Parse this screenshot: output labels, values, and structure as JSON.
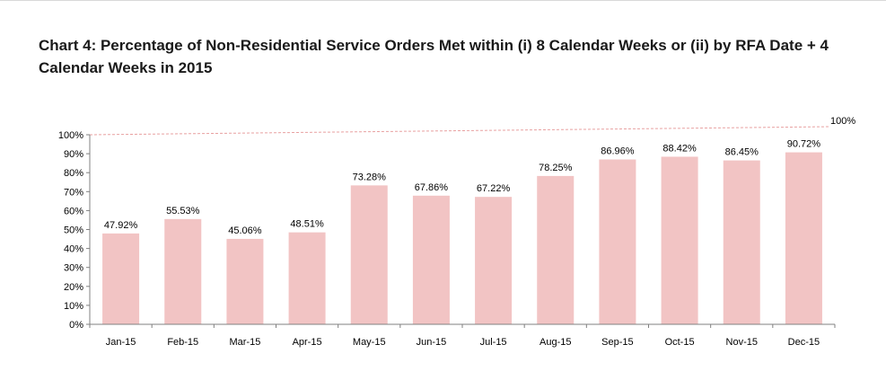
{
  "chart_data": {
    "type": "bar",
    "title": "Chart 4: Percentage of Non-Residential Service Orders Met within (i) 8 Calendar Weeks or (ii) by RFA Date + 4 Calendar Weeks in 2015",
    "categories": [
      "Jan-15",
      "Feb-15",
      "Mar-15",
      "Apr-15",
      "May-15",
      "Jun-15",
      "Jul-15",
      "Aug-15",
      "Sep-15",
      "Oct-15",
      "Nov-15",
      "Dec-15"
    ],
    "values": [
      47.92,
      55.53,
      45.06,
      48.51,
      73.28,
      67.86,
      67.22,
      78.25,
      86.96,
      88.42,
      86.45,
      90.72
    ],
    "data_labels": [
      "47.92%",
      "55.53%",
      "45.06%",
      "48.51%",
      "73.28%",
      "67.86%",
      "67.22%",
      "78.25%",
      "86.96%",
      "88.42%",
      "86.45%",
      "90.72%"
    ],
    "y_ticks": [
      "0%",
      "10%",
      "20%",
      "30%",
      "40%",
      "50%",
      "60%",
      "70%",
      "80%",
      "90%",
      "100%"
    ],
    "ylim": [
      0,
      100
    ],
    "xlabel": "",
    "ylabel": "",
    "grid": false,
    "reference_line": {
      "value": 100,
      "label": "100%",
      "style": "dashed"
    },
    "colors": {
      "bar": "#f2c4c4",
      "reference_line": "#e8a0a0",
      "axis": "#808080"
    }
  }
}
